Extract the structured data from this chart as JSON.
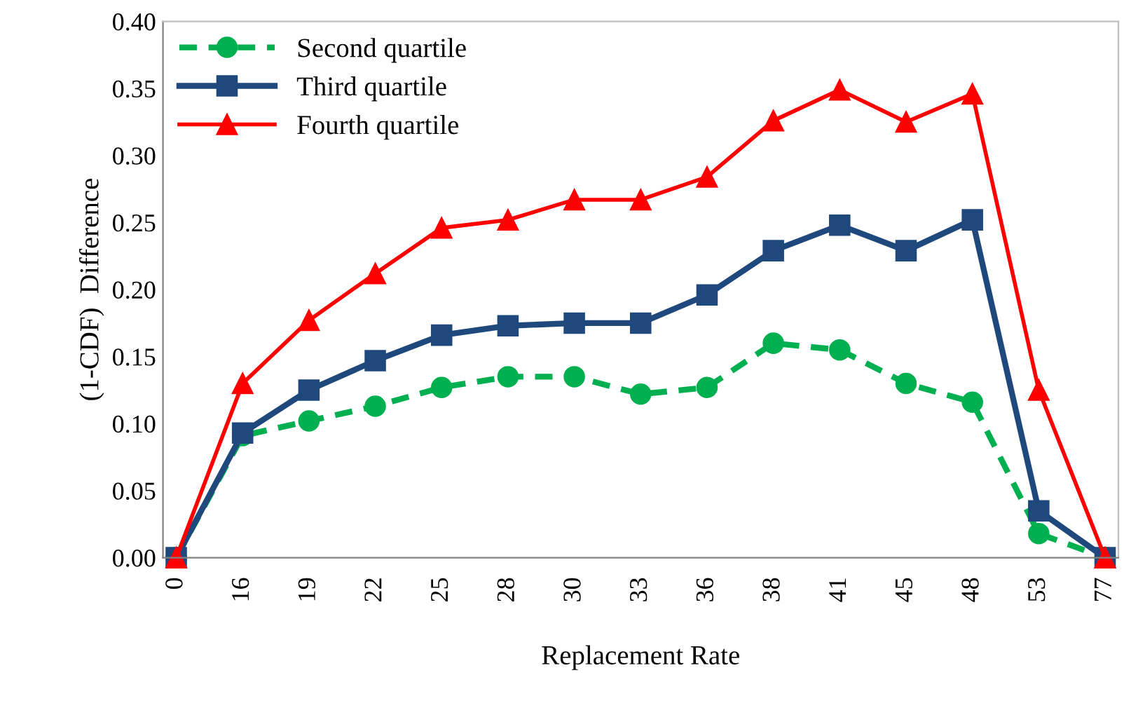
{
  "chart_data": {
    "type": "line",
    "xlabel": "Replacement Rate",
    "ylabel": "(1-CDF)  Difference",
    "categories": [
      "0",
      "16",
      "19",
      "22",
      "25",
      "28",
      "30",
      "33",
      "36",
      "38",
      "41",
      "45",
      "48",
      "53",
      "77"
    ],
    "series": [
      {
        "name": "Second quartile",
        "color": "#00b050",
        "line_style": "dashed",
        "marker": "circle",
        "values": [
          0,
          0.091,
          0.102,
          0.113,
          0.127,
          0.135,
          0.135,
          0.122,
          0.127,
          0.16,
          0.155,
          0.13,
          0.116,
          0.018,
          0
        ]
      },
      {
        "name": "Third quartile",
        "color": "#1f497d",
        "line_style": "solid",
        "marker": "square",
        "values": [
          0,
          0.093,
          0.125,
          0.147,
          0.166,
          0.173,
          0.175,
          0.175,
          0.196,
          0.229,
          0.248,
          0.229,
          0.252,
          0.035,
          0
        ]
      },
      {
        "name": "Fourth quartile",
        "color": "#ff0000",
        "line_style": "solid",
        "marker": "triangle",
        "values": [
          0,
          0.13,
          0.177,
          0.212,
          0.246,
          0.252,
          0.267,
          0.267,
          0.284,
          0.326,
          0.349,
          0.325,
          0.346,
          0.125,
          0
        ]
      }
    ],
    "ylim": [
      0,
      0.4
    ],
    "yticks": [
      {
        "value": 0,
        "label": "0.00"
      },
      {
        "value": 0.05,
        "label": "0.05"
      },
      {
        "value": 0.1,
        "label": "0.10"
      },
      {
        "value": 0.15,
        "label": "0.15"
      },
      {
        "value": 0.2,
        "label": "0.20"
      },
      {
        "value": 0.25,
        "label": "0.25"
      },
      {
        "value": 0.3,
        "label": "0.30"
      },
      {
        "value": 0.35,
        "label": "0.35"
      },
      {
        "value": 0.4,
        "label": "0.40"
      }
    ],
    "grid": false,
    "legend": "top left"
  }
}
